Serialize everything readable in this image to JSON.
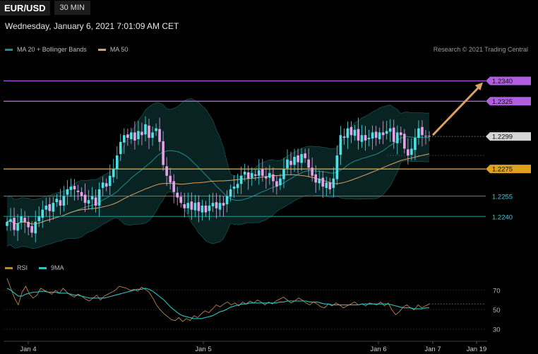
{
  "header": {
    "symbol": "EUR/USD",
    "timeframe": "30 MIN"
  },
  "timestamp": "Wednesday, January 6, 2021 7:01:09 AM CET",
  "legend_main": [
    {
      "label": "MA 20 + Bollinger Bands",
      "color": "#1d8c8c"
    },
    {
      "label": "MA 50",
      "color": "#d9a066"
    }
  ],
  "credit": "Research © 2021 Trading Central",
  "legend_rsi": [
    {
      "label": "RSI",
      "color": "#b8864b"
    },
    {
      "label": "9MA",
      "color": "#29c5c5"
    }
  ],
  "colors": {
    "up": "#4fe0e6",
    "down": "#e7a2e7",
    "resistance": "#b05fe0",
    "pivot": "#e0a020",
    "support": "#1e9a9a",
    "arrow": "#d9a066"
  },
  "chart_data": [
    {
      "type": "candlestick",
      "timeframe": "30 MIN",
      "y_range": [
        1.2212,
        1.2358
      ],
      "x_ticks": [
        "Jan 4",
        "Jan 5",
        "Jan 6",
        "Jan 7",
        "Jan 19"
      ],
      "last_price": "1.2299",
      "levels": [
        {
          "label": "1.2340",
          "value": 1.234,
          "kind": "resistance"
        },
        {
          "label": "1.2325",
          "value": 1.2325,
          "kind": "resistance"
        },
        {
          "label": "1.2275",
          "value": 1.2275,
          "kind": "pivot"
        },
        {
          "label": "1.2255",
          "value": 1.2255,
          "kind": "support"
        },
        {
          "label": "1.2240",
          "value": 1.224,
          "kind": "support"
        }
      ],
      "closes": [
        1.2236,
        1.2238,
        1.223,
        1.2235,
        1.224,
        1.2236,
        1.2232,
        1.2228,
        1.2236,
        1.224,
        1.2245,
        1.2248,
        1.2244,
        1.225,
        1.2253,
        1.2248,
        1.2255,
        1.226,
        1.2262,
        1.226,
        1.2258,
        1.2255,
        1.225,
        1.2252,
        1.2255,
        1.2248,
        1.226,
        1.2265,
        1.2262,
        1.227,
        1.2275,
        1.2285,
        1.2295,
        1.23,
        1.2298,
        1.2302,
        1.2296,
        1.2303,
        1.23,
        1.2308,
        1.2298,
        1.2302,
        1.2305,
        1.2295,
        1.2278,
        1.227,
        1.2265,
        1.2258,
        1.2254,
        1.225,
        1.2246,
        1.225,
        1.2245,
        1.225,
        1.2244,
        1.2248,
        1.2243,
        1.2248,
        1.225,
        1.2246,
        1.225,
        1.2248,
        1.2255,
        1.226,
        1.2262,
        1.2264,
        1.227,
        1.2273,
        1.2268,
        1.2272,
        1.227,
        1.2274,
        1.227,
        1.2268,
        1.2272,
        1.2266,
        1.2262,
        1.2268,
        1.2275,
        1.2282,
        1.2278,
        1.2284,
        1.228,
        1.2286,
        1.2283,
        1.2276,
        1.227,
        1.2265,
        1.2268,
        1.2262,
        1.2265,
        1.226,
        1.2268,
        1.2285,
        1.23,
        1.2298,
        1.2305,
        1.23,
        1.2304,
        1.2296,
        1.23,
        1.2296,
        1.2298,
        1.2302,
        1.2298,
        1.2302,
        1.23,
        1.2303,
        1.2305,
        1.2295,
        1.2302,
        1.23,
        1.229,
        1.2285,
        1.229,
        1.2298,
        1.2305,
        1.23,
        1.2299,
        1.2299
      ],
      "rsi": {
        "y_ticks": [
          70,
          50,
          30
        ],
        "y_range": [
          20,
          85
        ],
        "rsi": [
          82,
          72,
          62,
          55,
          68,
          74,
          66,
          62,
          65,
          72,
          70,
          68,
          66,
          70,
          67,
          72,
          68,
          65,
          63,
          66,
          64,
          61,
          59,
          62,
          65,
          60,
          64,
          66,
          68,
          70,
          74,
          73,
          72,
          70,
          71,
          69,
          73,
          71,
          68,
          62,
          55,
          50,
          46,
          43,
          40,
          39,
          42,
          38,
          41,
          39,
          44,
          42,
          46,
          49,
          47,
          51,
          55,
          53,
          56,
          58,
          55,
          57,
          54,
          58,
          56,
          59,
          57,
          60,
          58,
          55,
          58,
          56,
          59,
          61,
          63,
          60,
          57,
          59,
          62,
          60,
          57,
          55,
          58,
          56,
          53,
          52,
          56,
          54,
          57,
          55,
          52,
          54,
          56,
          58,
          55,
          56,
          54,
          57,
          56,
          55,
          58,
          54,
          57,
          50,
          45,
          48,
          53,
          55,
          52,
          50,
          55,
          52,
          54,
          56
        ],
        "ma9": [
          72,
          70,
          67,
          64,
          64,
          66,
          67,
          68,
          68,
          69,
          69,
          68,
          68,
          68,
          67,
          67,
          67,
          66,
          65,
          65,
          64,
          63,
          62,
          62,
          62,
          62,
          62,
          63,
          64,
          65,
          66,
          67,
          68,
          69,
          70,
          71,
          71,
          72,
          71,
          69,
          66,
          63,
          60,
          56,
          52,
          49,
          46,
          44,
          43,
          42,
          41,
          41,
          41,
          42,
          43,
          44,
          46,
          48,
          49,
          51,
          53,
          54,
          55,
          56,
          56,
          57,
          57,
          57,
          57,
          57,
          57,
          57,
          57,
          58,
          58,
          59,
          59,
          59,
          59,
          59,
          59,
          58,
          58,
          58,
          57,
          56,
          56,
          55,
          55,
          55,
          55,
          55,
          55,
          55,
          55,
          56,
          56,
          56,
          56,
          56,
          56,
          56,
          56,
          55,
          54,
          53,
          52,
          52,
          52,
          51,
          51,
          51,
          52,
          52
        ]
      }
    }
  ]
}
